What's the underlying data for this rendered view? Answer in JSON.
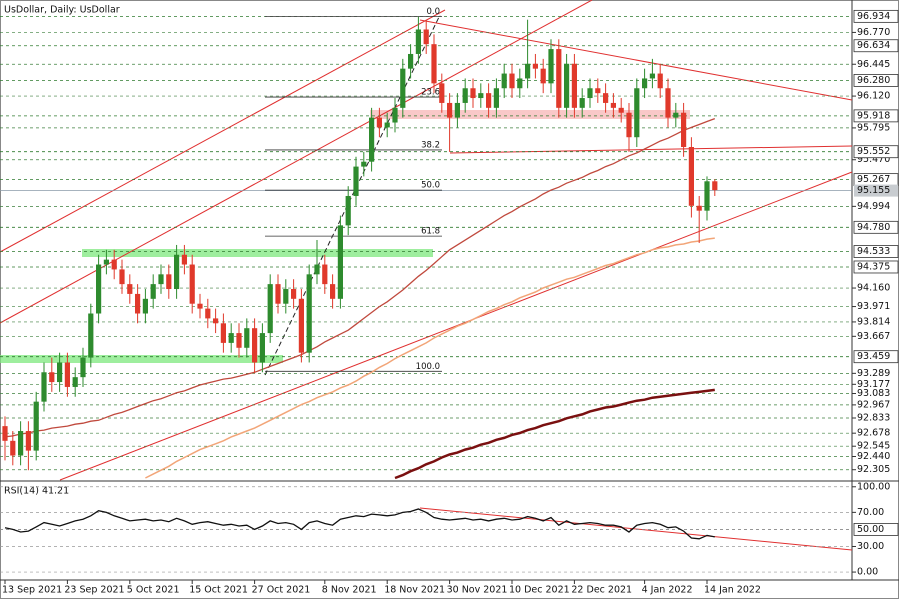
{
  "chart_data": [
    {
      "type": "candlestick",
      "title": "UsDollar, Daily:  UsDollar",
      "categories": [
        "13 Sep 2021",
        null,
        null,
        null,
        null,
        null,
        null,
        null,
        "23 Sep 2021",
        null,
        null,
        null,
        null,
        null,
        null,
        null,
        "5 Oct 2021",
        null,
        null,
        null,
        null,
        null,
        null,
        null,
        "15 Oct 2021",
        null,
        null,
        null,
        null,
        null,
        null,
        null,
        "27 Oct 2021",
        null,
        null,
        null,
        null,
        null,
        null,
        null,
        null,
        "8 Nov 2021",
        null,
        null,
        null,
        null,
        null,
        null,
        null,
        "18 Nov 2021",
        null,
        null,
        null,
        null,
        null,
        null,
        null,
        "30 Nov 2021",
        null,
        null,
        null,
        null,
        null,
        null,
        null,
        "10 Dec 2021",
        null,
        null,
        null,
        null,
        null,
        null,
        null,
        "22 Dec 2021",
        null,
        null,
        null,
        null,
        null,
        null,
        null,
        null,
        "4 Jan 2022",
        null,
        null,
        null,
        null,
        null,
        null,
        null,
        "14 Jan 2022",
        null
      ],
      "open": [
        92.75,
        92.6,
        92.45,
        92.7,
        92.5,
        93.0,
        93.3,
        93.2,
        93.4,
        93.15,
        93.25,
        93.45,
        93.9,
        94.4,
        94.45,
        94.35,
        94.2,
        94.1,
        93.9,
        94.05,
        94.2,
        94.3,
        94.15,
        94.5,
        94.4,
        94.0,
        93.95,
        93.85,
        93.8,
        93.6,
        93.7,
        93.55,
        93.75,
        93.4,
        93.7,
        94.2,
        94.0,
        94.15,
        94.05,
        93.5,
        94.3,
        94.4,
        94.2,
        94.05,
        94.8,
        95.1,
        95.4,
        95.45,
        95.9,
        95.8,
        95.85,
        96.0,
        96.4,
        96.55,
        96.8,
        96.65,
        96.25,
        96.05,
        95.9,
        96.05,
        96.2,
        96.1,
        96.15,
        96.0,
        96.2,
        96.35,
        96.2,
        96.3,
        96.45,
        96.4,
        96.25,
        96.6,
        96.0,
        96.45,
        96.0,
        96.1,
        96.2,
        96.15,
        96.05,
        96.0,
        95.95,
        95.7,
        96.2,
        96.3,
        96.35,
        96.2,
        95.9,
        95.95,
        95.6,
        95.0,
        94.95,
        95.25
      ],
      "high": [
        92.85,
        92.7,
        92.8,
        92.8,
        93.1,
        93.4,
        93.45,
        93.5,
        93.5,
        93.35,
        93.55,
        94.0,
        94.5,
        94.55,
        94.55,
        94.45,
        94.3,
        94.2,
        94.15,
        94.3,
        94.4,
        94.4,
        94.6,
        94.6,
        94.5,
        94.1,
        94.05,
        93.95,
        93.9,
        93.8,
        93.8,
        93.85,
        93.85,
        93.8,
        94.3,
        94.3,
        94.25,
        94.25,
        94.15,
        94.4,
        94.65,
        94.5,
        94.3,
        94.9,
        95.2,
        95.5,
        95.55,
        96.0,
        96.0,
        95.95,
        96.1,
        96.5,
        96.65,
        96.93,
        96.9,
        96.75,
        96.35,
        96.15,
        96.15,
        96.3,
        96.3,
        96.25,
        96.25,
        96.3,
        96.45,
        96.45,
        96.4,
        96.9,
        96.55,
        96.5,
        96.7,
        96.7,
        96.55,
        96.55,
        96.2,
        96.3,
        96.3,
        96.25,
        96.15,
        96.1,
        96.05,
        96.3,
        96.4,
        96.5,
        96.45,
        96.3,
        96.05,
        96.05,
        95.7,
        95.1,
        95.3,
        95.27
      ],
      "low": [
        92.4,
        92.35,
        92.35,
        92.3,
        92.4,
        92.9,
        93.1,
        93.1,
        93.05,
        93.05,
        93.15,
        93.35,
        93.8,
        94.3,
        94.25,
        94.1,
        94.0,
        93.8,
        93.8,
        93.95,
        94.1,
        94.05,
        94.05,
        94.3,
        93.9,
        93.85,
        93.75,
        93.7,
        93.5,
        93.5,
        93.45,
        93.45,
        93.29,
        93.3,
        93.6,
        93.9,
        93.9,
        93.95,
        93.4,
        93.4,
        94.2,
        94.1,
        93.95,
        93.95,
        94.7,
        95.0,
        95.3,
        95.35,
        95.7,
        95.7,
        95.75,
        95.9,
        96.3,
        96.45,
        96.55,
        96.15,
        95.95,
        95.55,
        95.8,
        95.95,
        96.0,
        96.0,
        95.9,
        95.9,
        96.1,
        96.1,
        96.1,
        96.2,
        96.3,
        96.15,
        96.15,
        95.9,
        95.9,
        95.9,
        95.9,
        96.0,
        96.05,
        95.95,
        95.9,
        95.85,
        95.55,
        95.6,
        96.1,
        96.2,
        96.1,
        95.8,
        95.8,
        95.5,
        94.88,
        94.62,
        94.85,
        95.1
      ],
      "close": [
        92.6,
        92.45,
        92.7,
        92.5,
        93.0,
        93.3,
        93.2,
        93.4,
        93.15,
        93.25,
        93.45,
        93.9,
        94.4,
        94.45,
        94.35,
        94.2,
        94.1,
        93.9,
        94.05,
        94.2,
        94.3,
        94.15,
        94.5,
        94.4,
        94.0,
        93.95,
        93.85,
        93.8,
        93.6,
        93.7,
        93.55,
        93.75,
        93.4,
        93.7,
        94.2,
        94.0,
        94.15,
        94.05,
        93.5,
        94.3,
        94.4,
        94.2,
        94.05,
        94.8,
        95.1,
        95.4,
        95.45,
        95.9,
        95.8,
        95.85,
        96.0,
        96.4,
        96.55,
        96.8,
        96.65,
        96.25,
        96.05,
        95.9,
        96.05,
        96.2,
        96.1,
        96.15,
        96.0,
        96.2,
        96.35,
        96.2,
        96.3,
        96.45,
        96.4,
        96.25,
        96.6,
        96.0,
        96.45,
        96.0,
        96.1,
        96.2,
        96.15,
        96.05,
        96.0,
        95.95,
        95.7,
        96.2,
        96.3,
        96.35,
        96.2,
        95.9,
        95.95,
        95.6,
        95.0,
        94.95,
        95.25,
        95.16
      ],
      "up_color": "#2e8b2e",
      "down_color": "#e0392b",
      "series": [
        {
          "color": "#c0493d",
          "values": [
            92.64,
            92.65,
            92.67,
            92.68,
            92.7,
            92.71,
            92.73,
            92.74,
            92.75,
            92.77,
            92.78,
            92.8,
            92.81,
            92.84,
            92.87,
            92.89,
            92.92,
            92.95,
            92.98,
            93.01,
            93.03,
            93.06,
            93.09,
            93.11,
            93.14,
            93.17,
            93.19,
            93.21,
            93.23,
            93.24,
            93.26,
            93.28,
            93.3,
            93.33,
            93.36,
            93.39,
            93.42,
            93.45,
            93.48,
            93.52,
            93.56,
            93.61,
            93.65,
            93.69,
            93.73,
            93.79,
            93.85,
            93.91,
            93.97,
            94.02,
            94.08,
            94.14,
            94.21,
            94.28,
            94.34,
            94.41,
            94.48,
            94.55,
            94.6,
            94.65,
            94.7,
            94.75,
            94.8,
            94.85,
            94.9,
            94.94,
            94.99,
            95.03,
            95.07,
            95.12,
            95.16,
            95.19,
            95.23,
            95.26,
            95.29,
            95.33,
            95.36,
            95.4,
            95.43,
            95.47,
            95.51,
            95.54,
            95.58,
            95.62,
            95.66,
            95.69,
            95.73,
            95.77,
            95.8,
            95.83,
            95.86,
            95.89
          ]
        },
        {
          "color": "#f2a578",
          "values": [
            null,
            null,
            null,
            null,
            null,
            null,
            null,
            null,
            null,
            null,
            null,
            null,
            null,
            null,
            null,
            null,
            null,
            null,
            92.22,
            92.26,
            92.3,
            92.34,
            92.39,
            92.43,
            92.47,
            92.51,
            92.54,
            92.57,
            92.6,
            92.64,
            92.67,
            92.7,
            92.73,
            92.77,
            92.81,
            92.85,
            92.89,
            92.93,
            92.97,
            93.0,
            93.04,
            93.07,
            93.1,
            93.14,
            93.17,
            93.21,
            93.26,
            93.3,
            93.35,
            93.39,
            93.44,
            93.48,
            93.52,
            93.56,
            93.6,
            93.65,
            93.69,
            93.73,
            93.77,
            93.8,
            93.84,
            93.88,
            93.92,
            93.95,
            93.99,
            94.02,
            94.06,
            94.09,
            94.12,
            94.16,
            94.19,
            94.22,
            94.25,
            94.27,
            94.3,
            94.33,
            94.36,
            94.39,
            94.41,
            94.44,
            94.47,
            94.5,
            94.52,
            94.55,
            94.57,
            94.58,
            94.6,
            94.61,
            94.63,
            94.64,
            94.66,
            94.67
          ]
        },
        {
          "color": "#7a1010",
          "values": [
            null,
            null,
            null,
            null,
            null,
            null,
            null,
            null,
            null,
            null,
            null,
            null,
            null,
            null,
            null,
            null,
            null,
            null,
            null,
            null,
            null,
            null,
            null,
            null,
            null,
            null,
            null,
            null,
            null,
            null,
            null,
            null,
            null,
            null,
            null,
            null,
            null,
            null,
            null,
            null,
            null,
            null,
            null,
            null,
            null,
            null,
            null,
            null,
            null,
            null,
            92.22,
            92.25,
            92.29,
            92.32,
            92.36,
            92.39,
            92.43,
            92.46,
            92.48,
            92.51,
            92.53,
            92.56,
            92.58,
            92.61,
            92.63,
            92.66,
            92.68,
            92.71,
            92.73,
            92.76,
            92.78,
            92.8,
            92.83,
            92.85,
            92.87,
            92.9,
            92.92,
            92.94,
            92.95,
            92.97,
            92.99,
            93.01,
            93.02,
            93.04,
            93.05,
            93.06,
            93.07,
            93.08,
            93.09,
            93.1,
            93.11,
            93.12
          ]
        }
      ],
      "ylim": [
        92.2,
        97.05
      ],
      "yticks": [
        {
          "value": 96.77,
          "label": "96.770"
        },
        96.445,
        {
          "value": 96.12,
          "label": "96.120"
        },
        95.795,
        {
          "value": 95.47,
          "label": "95.470"
        },
        94.994,
        {
          "value": 94.16,
          "label": "94.160"
        },
        93.971,
        93.814,
        93.667,
        93.289,
        93.177,
        93.083,
        92.967,
        92.833,
        92.678,
        92.545,
        {
          "value": 92.44,
          "label": "92.440"
        },
        92.305
      ],
      "levels": [
        96.934,
        96.634,
        {
          "value": 96.28,
          "label": "96.280"
        },
        95.918,
        95.552,
        95.267,
        {
          "value": 94.78,
          "label": "94.780"
        },
        94.533,
        94.375,
        93.459
      ],
      "current_price": 95.155,
      "fibonacci": [
        {
          "value": 96.934,
          "label": "0.0"
        },
        {
          "value": 96.11,
          "label": "23.6"
        },
        {
          "value": 95.57,
          "label": "38.2"
        },
        {
          "value": 95.16,
          "label": "50.0"
        },
        {
          "value": 94.69,
          "label": "61.8"
        },
        {
          "value": 93.31,
          "label": "100.0"
        }
      ],
      "grid": true
    },
    {
      "type": "line",
      "title": "RSI(14) 41.21",
      "color": "#111111",
      "values": [
        52,
        50,
        47,
        48,
        53,
        58,
        56,
        54,
        57,
        60,
        62,
        66,
        72,
        70,
        66,
        63,
        60,
        61,
        62,
        60,
        61,
        59,
        63,
        60,
        56,
        58,
        59,
        57,
        55,
        56,
        54,
        55,
        50,
        54,
        60,
        57,
        58,
        56,
        50,
        58,
        60,
        57,
        55,
        62,
        64,
        66,
        65,
        68,
        67,
        66,
        67,
        70,
        71,
        74,
        70,
        64,
        62,
        61,
        62,
        63,
        61,
        62,
        60,
        62,
        63,
        61,
        62,
        65,
        63,
        60,
        64,
        55,
        60,
        56,
        57,
        58,
        57,
        55,
        55,
        53,
        47,
        55,
        57,
        58,
        56,
        52,
        53,
        48,
        40,
        39,
        43,
        41.21
      ],
      "ylim": [
        -9.3,
        105.6
      ],
      "yticks": [
        {
          "value": 100,
          "label": "100.00"
        },
        {
          "value": 70,
          "label": "70.00"
        },
        {
          "value": 30,
          "label": "30.00"
        },
        {
          "value": 0,
          "label": "0.00"
        }
      ],
      "levels": [
        {
          "value": 50,
          "label": "50.00"
        }
      ]
    }
  ]
}
